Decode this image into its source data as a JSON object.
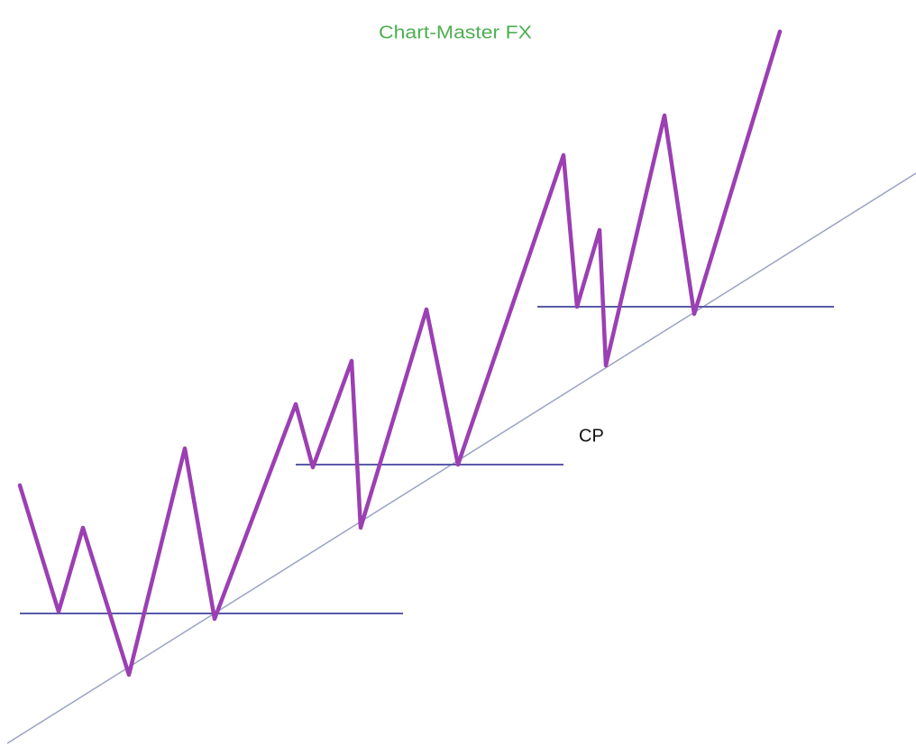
{
  "title": "Chart-Master FX",
  "label": "CP"
}
